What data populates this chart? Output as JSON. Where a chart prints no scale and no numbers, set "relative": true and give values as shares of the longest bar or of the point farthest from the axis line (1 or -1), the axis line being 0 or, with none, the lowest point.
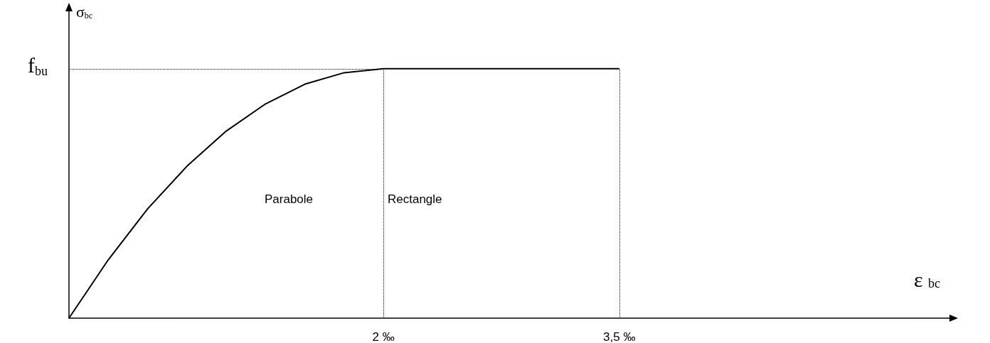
{
  "chart_data": {
    "type": "line",
    "relative": true,
    "xlabel": "ε $_{bc}$",
    "ylabel": "σ$_{bc}$",
    "x": [
      0,
      0.25,
      0.5,
      0.75,
      1,
      1.25,
      1.5,
      1.75,
      2,
      3.5
    ],
    "series": [
      {
        "color": "#000000",
        "values": [
          0,
          0.234,
          0.438,
          0.609,
          0.75,
          0.859,
          0.938,
          0.984,
          1,
          1
        ]
      }
    ],
    "xlim": [
      0,
      5.6
    ],
    "xticks": [
      {
        "value": 2,
        "label": "2 ‰"
      },
      {
        "value": 3.5,
        "label": "3,5 ‰"
      }
    ],
    "ref_lines": [
      {
        "axis": "y",
        "value": 1,
        "label": "f$_{bu}$",
        "line_style": "dotted"
      },
      {
        "axis": "x",
        "value": 2,
        "label": null,
        "line_style": "dotted"
      },
      {
        "axis": "x",
        "value": 3.5,
        "label": null,
        "line_style": "dotted"
      }
    ],
    "annotations": [
      "Parabole",
      "Rectangle"
    ],
    "grid": false,
    "marker": "none",
    "line_style": "solid",
    "tick_labels": "x"
  }
}
